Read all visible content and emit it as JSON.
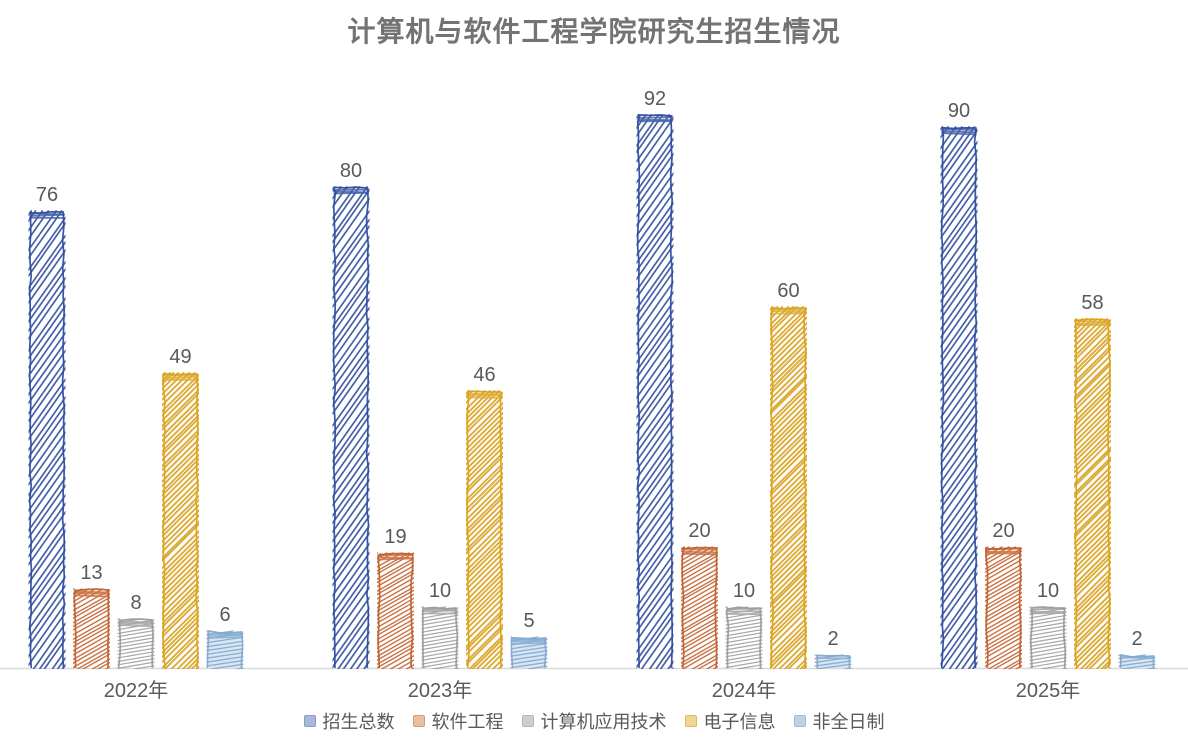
{
  "title": "计算机与软件工程学院研究生招生情况",
  "chart_data": {
    "type": "bar",
    "style": "hand-drawn-sketch",
    "title": "计算机与软件工程学院研究生招生情况",
    "categories": [
      "2022年",
      "2023年",
      "2024年",
      "2025年"
    ],
    "series": [
      {
        "name": "招生总数",
        "values": [
          76,
          80,
          92,
          90
        ],
        "color": "#2E4C9E",
        "swatch_fill": "#A9B7DA",
        "swatch_border": "#8B9CC9"
      },
      {
        "name": "软件工程",
        "values": [
          13,
          19,
          20,
          20
        ],
        "color": "#C1602C",
        "swatch_fill": "#EAC0A4",
        "swatch_border": "#D89B73"
      },
      {
        "name": "计算机应用技术",
        "values": [
          8,
          10,
          10,
          10
        ],
        "color": "#9B9B9B",
        "swatch_fill": "#CFCFCF",
        "swatch_border": "#B5B5B5"
      },
      {
        "name": "电子信息",
        "values": [
          49,
          46,
          60,
          58
        ],
        "color": "#D9A11D",
        "swatch_fill": "#EFD694",
        "swatch_border": "#DDB963"
      },
      {
        "name": "非全日制",
        "values": [
          6,
          5,
          2,
          2
        ],
        "color": "#7FA7CD",
        "swatch_fill": "#BDD3EA",
        "swatch_border": "#9CBBDC",
        "fill_tint": "#D8E5F2"
      }
    ],
    "ylim": [
      0,
      100
    ],
    "grid": false,
    "legend_position": "bottom",
    "data_labels": true,
    "label_color": "#595959",
    "baseline_color": "#D9D9D9",
    "title_color": "#737373"
  }
}
